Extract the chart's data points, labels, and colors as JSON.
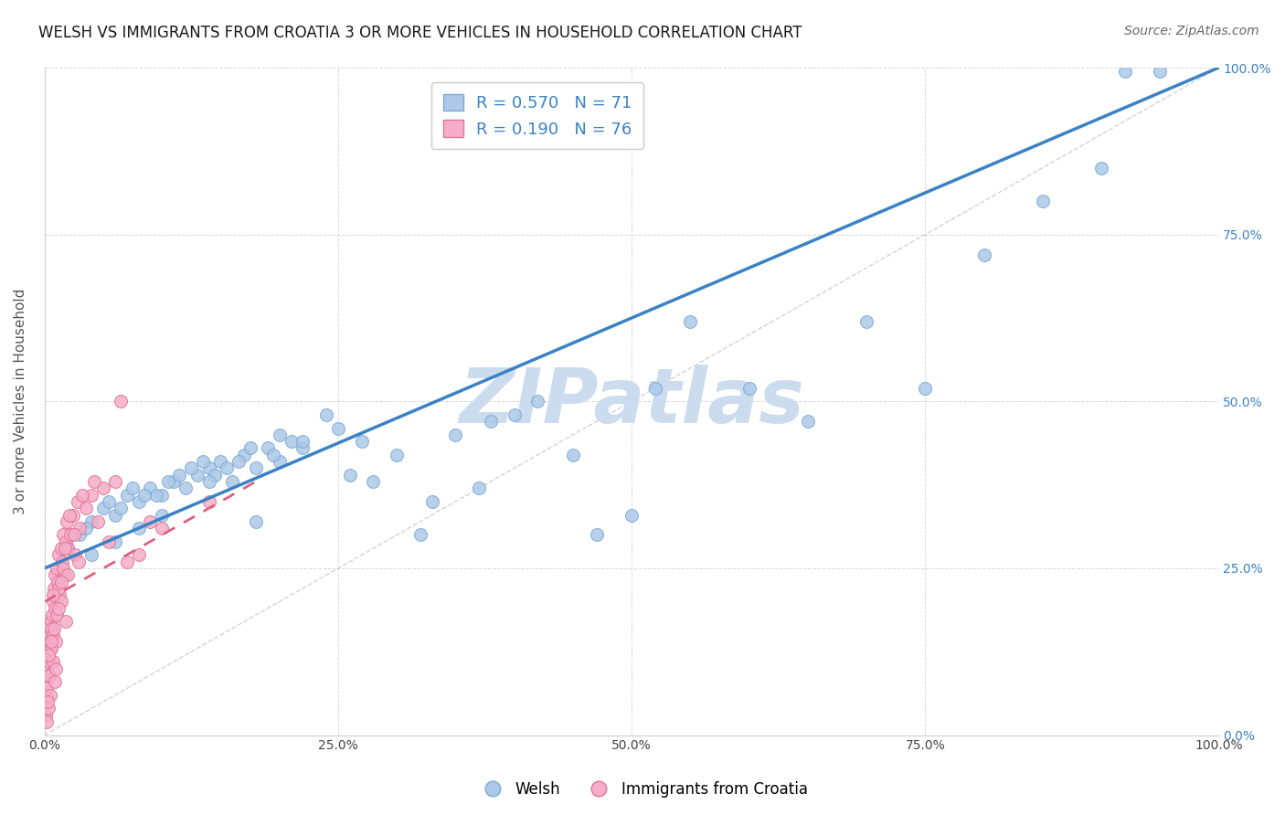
{
  "title": "WELSH VS IMMIGRANTS FROM CROATIA 3 OR MORE VEHICLES IN HOUSEHOLD CORRELATION CHART",
  "source": "Source: ZipAtlas.com",
  "ylabel": "3 or more Vehicles in Household",
  "xlim": [
    0,
    100
  ],
  "ylim": [
    0,
    100
  ],
  "xticks": [
    0,
    25,
    50,
    75,
    100
  ],
  "yticks": [
    0,
    25,
    50,
    75,
    100
  ],
  "xticklabels": [
    "0.0%",
    "25.0%",
    "50.0%",
    "75.0%",
    "100.0%"
  ],
  "yticklabels": [
    "0.0%",
    "25.0%",
    "50.0%",
    "75.0%",
    "100.0%"
  ],
  "welsh_color": "#adc8e8",
  "welsh_edge_color": "#7aaad4",
  "croatia_color": "#f5adc8",
  "croatia_edge_color": "#e07595",
  "welsh_line_color": "#3b82c4",
  "croatia_line_color": "#e06080",
  "grid_color": "#d8d8d8",
  "watermark_color": "#ccdcef",
  "watermark_text": "ZIPatlas",
  "legend_welsh_R": 0.57,
  "legend_welsh_N": 71,
  "legend_croatia_R": 0.19,
  "legend_croatia_N": 76,
  "welsh_line_x0": 0,
  "welsh_line_y0": 25,
  "welsh_line_x1": 100,
  "welsh_line_y1": 100,
  "croatia_line_x0": 0,
  "croatia_line_y0": 20,
  "croatia_line_x1": 18,
  "croatia_line_y1": 38,
  "diag_color": "#c0c0c0",
  "welsh_scatter_x": [
    2.0,
    3.0,
    4.0,
    5.0,
    6.0,
    7.0,
    8.0,
    9.0,
    10.0,
    11.0,
    12.0,
    13.0,
    14.0,
    15.0,
    16.0,
    17.0,
    18.0,
    19.0,
    20.0,
    21.0,
    22.0,
    5.5,
    7.5,
    9.5,
    11.5,
    13.5,
    15.5,
    17.5,
    19.5,
    3.5,
    6.5,
    8.5,
    10.5,
    12.5,
    14.5,
    16.5,
    4.0,
    6.0,
    8.0,
    10.0,
    14.0,
    18.0,
    22.0,
    26.0,
    30.0,
    35.0,
    40.0,
    50.0,
    60.0,
    70.0,
    80.0,
    90.0,
    95.0,
    25.0,
    28.0,
    32.0,
    37.0,
    42.0,
    47.0,
    52.0,
    55.0,
    65.0,
    75.0,
    85.0,
    92.0,
    20.0,
    24.0,
    27.0,
    33.0,
    38.0,
    45.0
  ],
  "welsh_scatter_y": [
    28.0,
    30.0,
    32.0,
    34.0,
    33.0,
    36.0,
    35.0,
    37.0,
    36.0,
    38.0,
    37.0,
    39.0,
    40.0,
    41.0,
    38.0,
    42.0,
    40.0,
    43.0,
    41.0,
    44.0,
    43.0,
    35.0,
    37.0,
    36.0,
    39.0,
    41.0,
    40.0,
    43.0,
    42.0,
    31.0,
    34.0,
    36.0,
    38.0,
    40.0,
    39.0,
    41.0,
    27.0,
    29.0,
    31.0,
    33.0,
    38.0,
    32.0,
    44.0,
    39.0,
    42.0,
    45.0,
    48.0,
    33.0,
    52.0,
    62.0,
    72.0,
    85.0,
    99.5,
    46.0,
    38.0,
    30.0,
    37.0,
    50.0,
    30.0,
    52.0,
    62.0,
    47.0,
    52.0,
    80.0,
    99.5,
    45.0,
    48.0,
    44.0,
    35.0,
    47.0,
    42.0
  ],
  "croatia_scatter_x": [
    0.05,
    0.1,
    0.15,
    0.2,
    0.25,
    0.3,
    0.35,
    0.4,
    0.45,
    0.5,
    0.55,
    0.6,
    0.65,
    0.7,
    0.75,
    0.8,
    0.85,
    0.9,
    0.95,
    1.0,
    1.1,
    1.2,
    1.3,
    1.4,
    1.5,
    1.6,
    1.7,
    1.8,
    1.9,
    2.0,
    2.2,
    2.4,
    2.6,
    2.8,
    3.0,
    3.5,
    4.0,
    4.5,
    5.0,
    5.5,
    6.0,
    7.0,
    8.0,
    9.0,
    10.0,
    0.1,
    0.2,
    0.3,
    0.4,
    0.5,
    0.6,
    0.7,
    0.8,
    0.9,
    1.0,
    1.2,
    1.4,
    1.6,
    1.8,
    2.0,
    0.15,
    0.25,
    0.35,
    0.55,
    0.75,
    0.95,
    1.15,
    1.45,
    1.75,
    2.1,
    2.5,
    2.9,
    3.2,
    4.2,
    6.5,
    14.0
  ],
  "croatia_scatter_y": [
    5.0,
    8.0,
    6.0,
    10.0,
    12.0,
    9.0,
    14.0,
    11.0,
    15.0,
    13.0,
    17.0,
    16.0,
    18.0,
    20.0,
    15.0,
    22.0,
    19.0,
    24.0,
    14.0,
    25.0,
    23.0,
    27.0,
    21.0,
    28.0,
    26.0,
    30.0,
    24.0,
    29.0,
    32.0,
    28.0,
    30.0,
    33.0,
    27.0,
    35.0,
    31.0,
    34.0,
    36.0,
    32.0,
    37.0,
    29.0,
    38.0,
    26.0,
    27.0,
    32.0,
    31.0,
    3.0,
    7.0,
    4.0,
    9.0,
    6.0,
    13.0,
    11.0,
    16.0,
    8.0,
    18.0,
    22.0,
    20.0,
    25.0,
    17.0,
    24.0,
    2.0,
    5.0,
    12.0,
    14.0,
    21.0,
    10.0,
    19.0,
    23.0,
    28.0,
    33.0,
    30.0,
    26.0,
    36.0,
    38.0,
    50.0,
    35.0
  ],
  "title_fontsize": 12,
  "source_fontsize": 10,
  "axis_label_fontsize": 11,
  "tick_fontsize": 10,
  "legend_fontsize": 13,
  "watermark_fontsize": 60
}
